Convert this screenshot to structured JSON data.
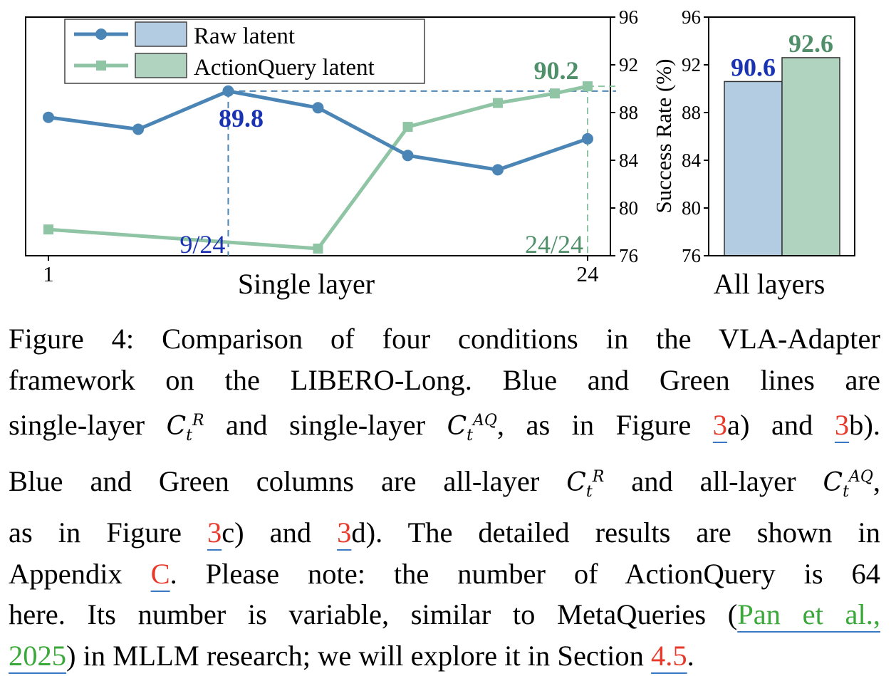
{
  "chart_data": [
    {
      "type": "line",
      "xlabel": "Single layer",
      "x_tick_labels": [
        "1",
        "24"
      ],
      "x": [
        1,
        4.83,
        8.67,
        12.5,
        16.33,
        20.17,
        24
      ],
      "ylabel": "Success Rate (%)",
      "ylim": [
        76,
        96
      ],
      "yticks": [
        "76",
        "80",
        "84",
        "88",
        "92",
        "96"
      ],
      "y_axis_side": "right",
      "legend_placement": "top-left",
      "grid": false,
      "series": [
        {
          "name": "Raw latent",
          "color": "#4a85b5",
          "marker": "circle",
          "values": [
            87.6,
            86.6,
            89.8,
            88.4,
            84.4,
            83.2,
            85.8
          ]
        },
        {
          "name": "ActionQuery latent",
          "color": "#8fc4a5",
          "marker": "square",
          "values": [
            78.2,
            null,
            null,
            76.6,
            86.8,
            88.8,
            90.2
          ]
        }
      ],
      "line_points": {
        "Raw latent": [
          [
            1,
            87.6
          ],
          [
            4.83,
            86.6
          ],
          [
            8.67,
            89.8
          ],
          [
            12.5,
            88.4
          ],
          [
            16.33,
            84.4
          ],
          [
            20.17,
            83.2
          ],
          [
            24,
            85.8
          ]
        ],
        "ActionQuery latent": [
          [
            1,
            78.2
          ],
          [
            12.5,
            76.6
          ],
          [
            16.33,
            86.8
          ],
          [
            20.17,
            88.8
          ],
          [
            22.6,
            89.6
          ],
          [
            24,
            90.2
          ]
        ]
      },
      "annotations": [
        {
          "text": "89.8",
          "series": "Raw latent",
          "x": 8.67,
          "y": 89.8,
          "color": "#1a33b3"
        },
        {
          "text": "90.2",
          "series": "ActionQuery latent",
          "x": 24,
          "y": 90.2,
          "color": "#4f8f6a"
        },
        {
          "text": "9/24",
          "x": 8.67,
          "color": "#1a33b3"
        },
        {
          "text": "24/24",
          "x": 24,
          "color": "#4f8f6a"
        }
      ]
    },
    {
      "type": "bar",
      "xlabel": "All layers",
      "ylim": [
        76,
        96
      ],
      "yticks": [
        "76",
        "80",
        "84",
        "88",
        "92",
        "96"
      ],
      "series": [
        {
          "name": "Raw latent",
          "value": 90.6,
          "color": "#b3cce2",
          "label_color": "#1a33b3"
        },
        {
          "name": "ActionQuery latent",
          "value": 92.6,
          "color": "#b0d3bf",
          "label_color": "#4f8f6a"
        }
      ]
    }
  ],
  "caption": {
    "lines": [
      [
        {
          "t": "Figure 4: Comparison of four conditions in the VLA-Adapter"
        }
      ],
      [
        {
          "t": "framework on the LIBERO-Long.  Blue and Green lines are"
        }
      ],
      [
        {
          "t": "single-layer "
        },
        {
          "m": "C",
          "sub": "t",
          "sup": "R"
        },
        {
          "t": " and single-layer "
        },
        {
          "m": "C",
          "sub": "t",
          "sup": "AQ"
        },
        {
          "t": ", as in Figure "
        },
        {
          "r": "3"
        },
        {
          "t": "a) and "
        },
        {
          "r": "3"
        },
        {
          "t": "b)."
        }
      ],
      [
        {
          "t": "Blue and Green columns are all-layer "
        },
        {
          "m": "C",
          "sub": "t",
          "sup": "R"
        },
        {
          "t": " and all-layer "
        },
        {
          "m": "C",
          "sub": "t",
          "sup": "AQ"
        },
        {
          "t": ","
        }
      ],
      [
        {
          "t": "as in Figure "
        },
        {
          "r": "3"
        },
        {
          "t": "c) and "
        },
        {
          "r": "3"
        },
        {
          "t": "d).  The detailed results are shown in"
        }
      ],
      [
        {
          "t": "Appendix "
        },
        {
          "r": "C"
        },
        {
          "t": ". Please note:  the number of ActionQuery is 64"
        }
      ],
      [
        {
          "t": "here. Its number is variable, similar to MetaQueries ("
        },
        {
          "c": "Pan et al.,"
        }
      ],
      [
        {
          "c": "2025"
        },
        {
          "t": ") in MLLM research; we will explore it in Section "
        },
        {
          "r": "4.5"
        },
        {
          "t": "."
        }
      ]
    ]
  }
}
